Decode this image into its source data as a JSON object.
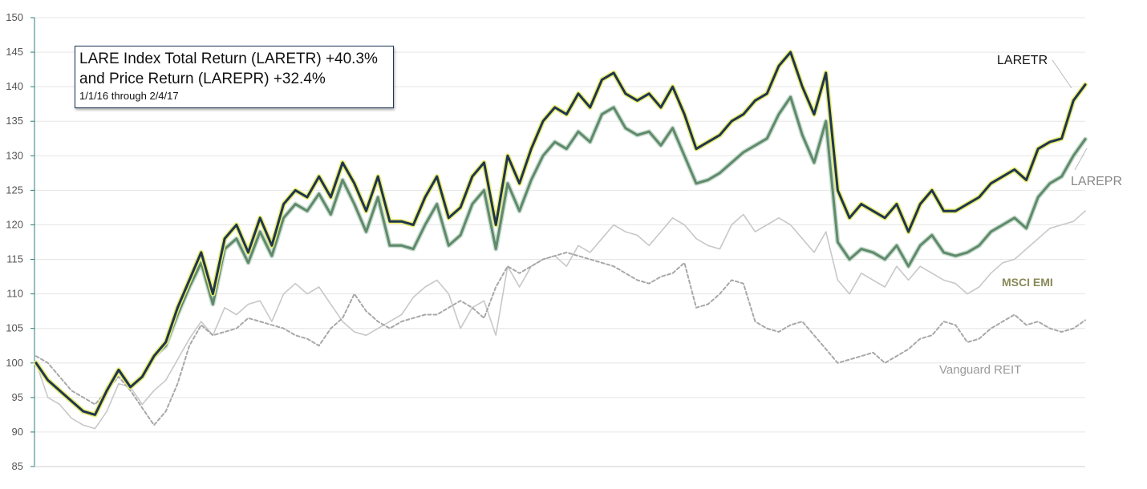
{
  "colors": {
    "laretr_line": "#1f3550",
    "laretr_glow": "#e8ec6a",
    "larepr_line": "#5f8a6b",
    "larepr_glow": "#c9dccf",
    "msci": "#c8c8c8",
    "vanguard": "#a8a8a8",
    "grid": "#e6e6e6",
    "axis": "#2e7d7a",
    "msci_label": "#8a8a5a",
    "vanguard_label": "#9a9a9a",
    "larepr_label": "#888888",
    "laretr_label": "#111111"
  },
  "chart_data": {
    "type": "line",
    "title": "LARE Index Total Return (LARETR) +40.3%",
    "subtitle": "and Price Return (LAREPR) +32.4%",
    "date_range": "1/1/16 through 2/4/17",
    "ylim": [
      85,
      150
    ],
    "yticks": [
      "85",
      "90",
      "95",
      "100",
      "105",
      "110",
      "115",
      "120",
      "125",
      "130",
      "135",
      "140",
      "145",
      "150"
    ],
    "grid": "horizontal",
    "series": [
      {
        "name": "LARETR",
        "style": "solid-glow",
        "values": [
          100,
          97.5,
          96,
          94.5,
          93,
          92.5,
          96,
          99,
          96.5,
          98,
          101,
          103,
          108,
          112,
          116,
          110,
          118,
          120,
          116,
          121,
          117,
          123,
          125,
          124,
          127,
          124,
          129,
          126,
          122,
          127,
          120.5,
          120.5,
          120,
          124,
          127,
          121,
          122.5,
          127,
          129,
          120,
          130,
          126,
          131,
          135,
          137,
          136,
          139,
          137,
          141,
          142,
          139,
          138,
          139,
          137,
          140,
          136,
          131,
          132,
          133,
          135,
          136,
          138,
          139,
          143,
          145,
          140,
          136,
          142,
          125,
          121,
          123,
          122,
          121,
          123,
          119,
          123,
          125,
          122,
          122,
          123,
          124,
          126,
          127,
          128,
          126.5,
          131,
          132,
          132.5,
          138,
          140.3
        ]
      },
      {
        "name": "LAREPR",
        "style": "solid-glow",
        "values": [
          100,
          97.5,
          96,
          94.5,
          93,
          92.5,
          96,
          99,
          96.5,
          98,
          101,
          102.5,
          107,
          111,
          114.5,
          108.5,
          116.5,
          118,
          114.5,
          119,
          115.5,
          121,
          123,
          122,
          124.5,
          121.5,
          126.5,
          123,
          119,
          124,
          117,
          117,
          116.5,
          120,
          123,
          117,
          118.5,
          123,
          125,
          116.5,
          126,
          122,
          126.5,
          130,
          132,
          131,
          133.5,
          132,
          136,
          137,
          134,
          133,
          133.5,
          131.5,
          134,
          130,
          126,
          126.5,
          127.5,
          129,
          130.5,
          131.5,
          132.5,
          136,
          138.5,
          133,
          129,
          135,
          117.5,
          115,
          116.5,
          116,
          115,
          117,
          114,
          117,
          118.5,
          116,
          115.5,
          116,
          117,
          119,
          120,
          121,
          119.5,
          124,
          126,
          127,
          130,
          132.4
        ]
      },
      {
        "name": "MSCI EMI",
        "style": "solid-light",
        "values": [
          100,
          95,
          94,
          92,
          91,
          90.5,
          93,
          97,
          96.5,
          94,
          96,
          97.5,
          100.5,
          103.5,
          106,
          104,
          108,
          107,
          108.5,
          109,
          106,
          110,
          111.5,
          110,
          111,
          108.5,
          106,
          104.5,
          104,
          105,
          106,
          107,
          109.5,
          111,
          112,
          110,
          105,
          108,
          109,
          104,
          114,
          111,
          114,
          115,
          115.5,
          114,
          117,
          116,
          118,
          120,
          119,
          118.5,
          117,
          119,
          121,
          120,
          118,
          117,
          116.5,
          120,
          121.5,
          119,
          120,
          121,
          120,
          118,
          116,
          119,
          112,
          110,
          113,
          112,
          111,
          114,
          112,
          114,
          113,
          112,
          111.5,
          110,
          111,
          113,
          114.5,
          115,
          116.5,
          118,
          119.5,
          120,
          120.5,
          122
        ]
      },
      {
        "name": "Vanguard REIT",
        "style": "dashed",
        "values": [
          101,
          100,
          98,
          96,
          95,
          94,
          96,
          98,
          96,
          93.5,
          91,
          93,
          97,
          102.5,
          105.5,
          104,
          104.5,
          105,
          106.5,
          106,
          105.5,
          105,
          104,
          103.5,
          102.5,
          105,
          106.5,
          110,
          107.5,
          106,
          105,
          106,
          106.5,
          107,
          107,
          108,
          109,
          108,
          106.5,
          111,
          114,
          113,
          114,
          115,
          115.5,
          116,
          115.5,
          115,
          114.5,
          114,
          113,
          112,
          111.5,
          112.5,
          113,
          114.5,
          108,
          108.5,
          110,
          112,
          111.5,
          106,
          105,
          104.5,
          105.5,
          106,
          104,
          102,
          100,
          100.5,
          101,
          101.5,
          100,
          101,
          102,
          103.5,
          104,
          106,
          105.5,
          103,
          103.5,
          105,
          106,
          107,
          105.5,
          106,
          105,
          104.5,
          105,
          106.2
        ]
      }
    ],
    "legend": "inline labels at line ends"
  },
  "labels": {
    "laretr": "LARETR",
    "larepr": "LAREPR",
    "msci": "MSCI EMI",
    "vanguard": "Vanguard REIT"
  }
}
